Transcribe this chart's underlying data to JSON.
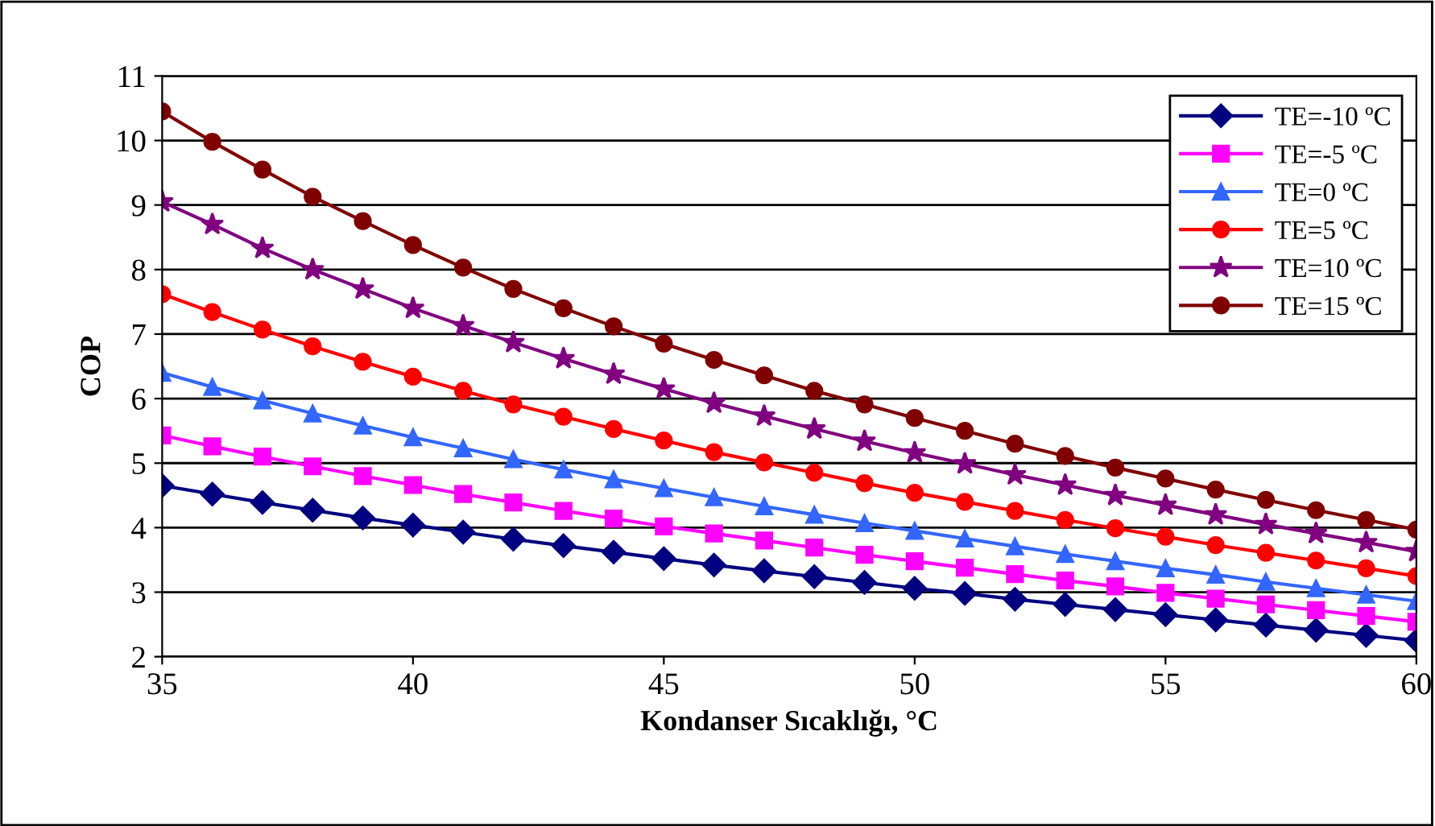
{
  "chart_data": {
    "type": "line",
    "xlabel": "Kondanser Sıcaklığı, °C",
    "ylabel": "COP",
    "x": [
      35,
      36,
      37,
      38,
      39,
      40,
      41,
      42,
      43,
      44,
      45,
      46,
      47,
      48,
      49,
      50,
      51,
      52,
      53,
      54,
      55,
      56,
      57,
      58,
      59,
      60
    ],
    "xlim": [
      35,
      60
    ],
    "xticks": [
      35,
      40,
      45,
      50,
      55,
      60
    ],
    "ylim": [
      2,
      11
    ],
    "yticks": [
      2,
      3,
      4,
      5,
      6,
      7,
      8,
      9,
      10,
      11
    ],
    "grid": "y",
    "legend": "top right",
    "line_style": "solid",
    "series": [
      {
        "name": "TE=-10 ºC",
        "color": "#000080",
        "marker": "diamond",
        "values": [
          4.65,
          4.52,
          4.39,
          4.27,
          4.15,
          4.04,
          3.93,
          3.82,
          3.72,
          3.62,
          3.52,
          3.42,
          3.33,
          3.24,
          3.15,
          3.06,
          2.98,
          2.89,
          2.81,
          2.73,
          2.65,
          2.57,
          2.49,
          2.41,
          2.33,
          2.25
        ]
      },
      {
        "name": "TE=-5 ºC",
        "color": "#ff00ff",
        "marker": "square",
        "values": [
          5.43,
          5.26,
          5.1,
          4.95,
          4.8,
          4.66,
          4.52,
          4.39,
          4.26,
          4.14,
          4.02,
          3.91,
          3.8,
          3.69,
          3.58,
          3.48,
          3.38,
          3.28,
          3.18,
          3.09,
          2.99,
          2.9,
          2.81,
          2.72,
          2.63,
          2.54
        ]
      },
      {
        "name": "TE=0 ºC",
        "color": "#3366ff",
        "marker": "triangle",
        "values": [
          6.4,
          6.18,
          5.97,
          5.77,
          5.58,
          5.4,
          5.23,
          5.06,
          4.9,
          4.75,
          4.61,
          4.47,
          4.33,
          4.2,
          4.07,
          3.95,
          3.83,
          3.71,
          3.59,
          3.48,
          3.37,
          3.27,
          3.16,
          3.06,
          2.96,
          2.86
        ]
      },
      {
        "name": "TE=5 ºC",
        "color": "#ff0000",
        "marker": "circle",
        "values": [
          7.62,
          7.34,
          7.07,
          6.81,
          6.57,
          6.34,
          6.12,
          5.91,
          5.72,
          5.53,
          5.35,
          5.17,
          5.01,
          4.85,
          4.69,
          4.54,
          4.4,
          4.26,
          4.12,
          3.99,
          3.86,
          3.73,
          3.61,
          3.49,
          3.37,
          3.25
        ]
      },
      {
        "name": "TE=10 ºC",
        "color": "#800080",
        "marker": "star",
        "values": [
          9.05,
          8.7,
          8.33,
          8.0,
          7.7,
          7.4,
          7.13,
          6.87,
          6.62,
          6.38,
          6.15,
          5.93,
          5.73,
          5.53,
          5.34,
          5.16,
          4.99,
          4.82,
          4.66,
          4.5,
          4.35,
          4.2,
          4.05,
          3.91,
          3.77,
          3.63
        ]
      },
      {
        "name": "TE=15 ºC",
        "color": "#800000",
        "marker": "circle",
        "values": [
          10.45,
          9.98,
          9.55,
          9.13,
          8.75,
          8.38,
          8.03,
          7.7,
          7.4,
          7.12,
          6.85,
          6.6,
          6.36,
          6.12,
          5.91,
          5.7,
          5.5,
          5.3,
          5.11,
          4.93,
          4.76,
          4.59,
          4.43,
          4.27,
          4.12,
          3.97
        ]
      }
    ]
  }
}
